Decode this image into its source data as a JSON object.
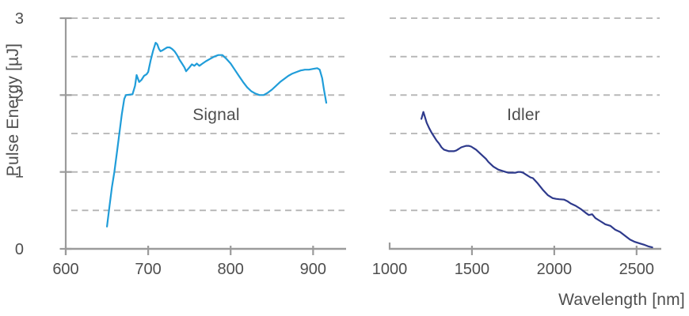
{
  "chart_data": {
    "type": "line",
    "title": "",
    "xlabel": "Wavelength [nm]",
    "ylabel": "Pulse Energy [µJ]",
    "ylim": [
      0,
      3
    ],
    "y_ticks": [
      0,
      1,
      2,
      3
    ],
    "y_gridlines": [
      0.5,
      1,
      1.5,
      2,
      2.5,
      3
    ],
    "grid": "horizontal dashed",
    "legend_position": "inline panel labels",
    "colors": {
      "grid": "#b3b3b3",
      "axis": "#9b9b9b",
      "text": "#4e4e4e",
      "signal": "#209dd9",
      "idler": "#2e3a8c"
    },
    "panels": [
      {
        "name": "signal",
        "label": "Signal",
        "color": "#209dd9",
        "xlim": [
          600,
          940
        ],
        "x_ticks": [
          600,
          700,
          800,
          900
        ],
        "points": [
          [
            650,
            0.29
          ],
          [
            653,
            0.55
          ],
          [
            656,
            0.8
          ],
          [
            659,
            1.0
          ],
          [
            662,
            1.25
          ],
          [
            665,
            1.5
          ],
          [
            668,
            1.75
          ],
          [
            671,
            1.95
          ],
          [
            673,
            2.0
          ],
          [
            681,
            2.01
          ],
          [
            684,
            2.12
          ],
          [
            686,
            2.26
          ],
          [
            689,
            2.17
          ],
          [
            692,
            2.2
          ],
          [
            695,
            2.25
          ],
          [
            698,
            2.27
          ],
          [
            700,
            2.3
          ],
          [
            703,
            2.45
          ],
          [
            706,
            2.58
          ],
          [
            709,
            2.68
          ],
          [
            711,
            2.66
          ],
          [
            713,
            2.6
          ],
          [
            715,
            2.57
          ],
          [
            717,
            2.58
          ],
          [
            720,
            2.6
          ],
          [
            723,
            2.62
          ],
          [
            726,
            2.62
          ],
          [
            729,
            2.6
          ],
          [
            732,
            2.57
          ],
          [
            735,
            2.52
          ],
          [
            738,
            2.46
          ],
          [
            741,
            2.41
          ],
          [
            744,
            2.36
          ],
          [
            746,
            2.31
          ],
          [
            750,
            2.36
          ],
          [
            753,
            2.4
          ],
          [
            756,
            2.38
          ],
          [
            759,
            2.41
          ],
          [
            762,
            2.38
          ],
          [
            766,
            2.41
          ],
          [
            770,
            2.44
          ],
          [
            775,
            2.47
          ],
          [
            780,
            2.5
          ],
          [
            785,
            2.52
          ],
          [
            790,
            2.52
          ],
          [
            795,
            2.47
          ],
          [
            800,
            2.41
          ],
          [
            805,
            2.33
          ],
          [
            810,
            2.25
          ],
          [
            815,
            2.17
          ],
          [
            820,
            2.1
          ],
          [
            825,
            2.05
          ],
          [
            830,
            2.02
          ],
          [
            835,
            2.0
          ],
          [
            840,
            2.0
          ],
          [
            845,
            2.03
          ],
          [
            850,
            2.07
          ],
          [
            855,
            2.12
          ],
          [
            860,
            2.17
          ],
          [
            865,
            2.21
          ],
          [
            870,
            2.25
          ],
          [
            875,
            2.28
          ],
          [
            880,
            2.3
          ],
          [
            885,
            2.32
          ],
          [
            890,
            2.33
          ],
          [
            895,
            2.33
          ],
          [
            900,
            2.34
          ],
          [
            905,
            2.35
          ],
          [
            908,
            2.33
          ],
          [
            911,
            2.22
          ],
          [
            913,
            2.08
          ],
          [
            916,
            1.9
          ]
        ]
      },
      {
        "name": "idler",
        "label": "Idler",
        "color": "#2e3a8c",
        "xlim": [
          1000,
          2650
        ],
        "x_ticks": [
          1000,
          1500,
          2000,
          2500
        ],
        "points": [
          [
            1193,
            1.69
          ],
          [
            1205,
            1.78
          ],
          [
            1212,
            1.73
          ],
          [
            1225,
            1.64
          ],
          [
            1240,
            1.57
          ],
          [
            1255,
            1.51
          ],
          [
            1270,
            1.46
          ],
          [
            1285,
            1.41
          ],
          [
            1300,
            1.37
          ],
          [
            1315,
            1.32
          ],
          [
            1330,
            1.29
          ],
          [
            1345,
            1.28
          ],
          [
            1360,
            1.27
          ],
          [
            1375,
            1.27
          ],
          [
            1390,
            1.27
          ],
          [
            1405,
            1.28
          ],
          [
            1420,
            1.3
          ],
          [
            1435,
            1.32
          ],
          [
            1450,
            1.33
          ],
          [
            1465,
            1.34
          ],
          [
            1480,
            1.34
          ],
          [
            1495,
            1.33
          ],
          [
            1510,
            1.31
          ],
          [
            1525,
            1.29
          ],
          [
            1540,
            1.26
          ],
          [
            1555,
            1.23
          ],
          [
            1570,
            1.2
          ],
          [
            1585,
            1.17
          ],
          [
            1600,
            1.13
          ],
          [
            1615,
            1.1
          ],
          [
            1630,
            1.07
          ],
          [
            1645,
            1.05
          ],
          [
            1660,
            1.03
          ],
          [
            1675,
            1.02
          ],
          [
            1690,
            1.01
          ],
          [
            1705,
            1.0
          ],
          [
            1720,
            0.99
          ],
          [
            1735,
            0.99
          ],
          [
            1750,
            0.99
          ],
          [
            1765,
            0.99
          ],
          [
            1780,
            1.0
          ],
          [
            1795,
            1.0
          ],
          [
            1810,
            0.99
          ],
          [
            1825,
            0.97
          ],
          [
            1840,
            0.95
          ],
          [
            1855,
            0.93
          ],
          [
            1870,
            0.92
          ],
          [
            1900,
            0.85
          ],
          [
            1930,
            0.77
          ],
          [
            1960,
            0.7
          ],
          [
            1990,
            0.66
          ],
          [
            2010,
            0.65
          ],
          [
            2030,
            0.645
          ],
          [
            2060,
            0.64
          ],
          [
            2080,
            0.62
          ],
          [
            2100,
            0.59
          ],
          [
            2130,
            0.56
          ],
          [
            2160,
            0.52
          ],
          [
            2190,
            0.47
          ],
          [
            2210,
            0.44
          ],
          [
            2230,
            0.45
          ],
          [
            2250,
            0.4
          ],
          [
            2280,
            0.36
          ],
          [
            2310,
            0.32
          ],
          [
            2340,
            0.3
          ],
          [
            2370,
            0.25
          ],
          [
            2400,
            0.22
          ],
          [
            2430,
            0.17
          ],
          [
            2460,
            0.12
          ],
          [
            2490,
            0.09
          ],
          [
            2520,
            0.07
          ],
          [
            2550,
            0.05
          ],
          [
            2575,
            0.03
          ],
          [
            2595,
            0.02
          ]
        ]
      }
    ]
  }
}
